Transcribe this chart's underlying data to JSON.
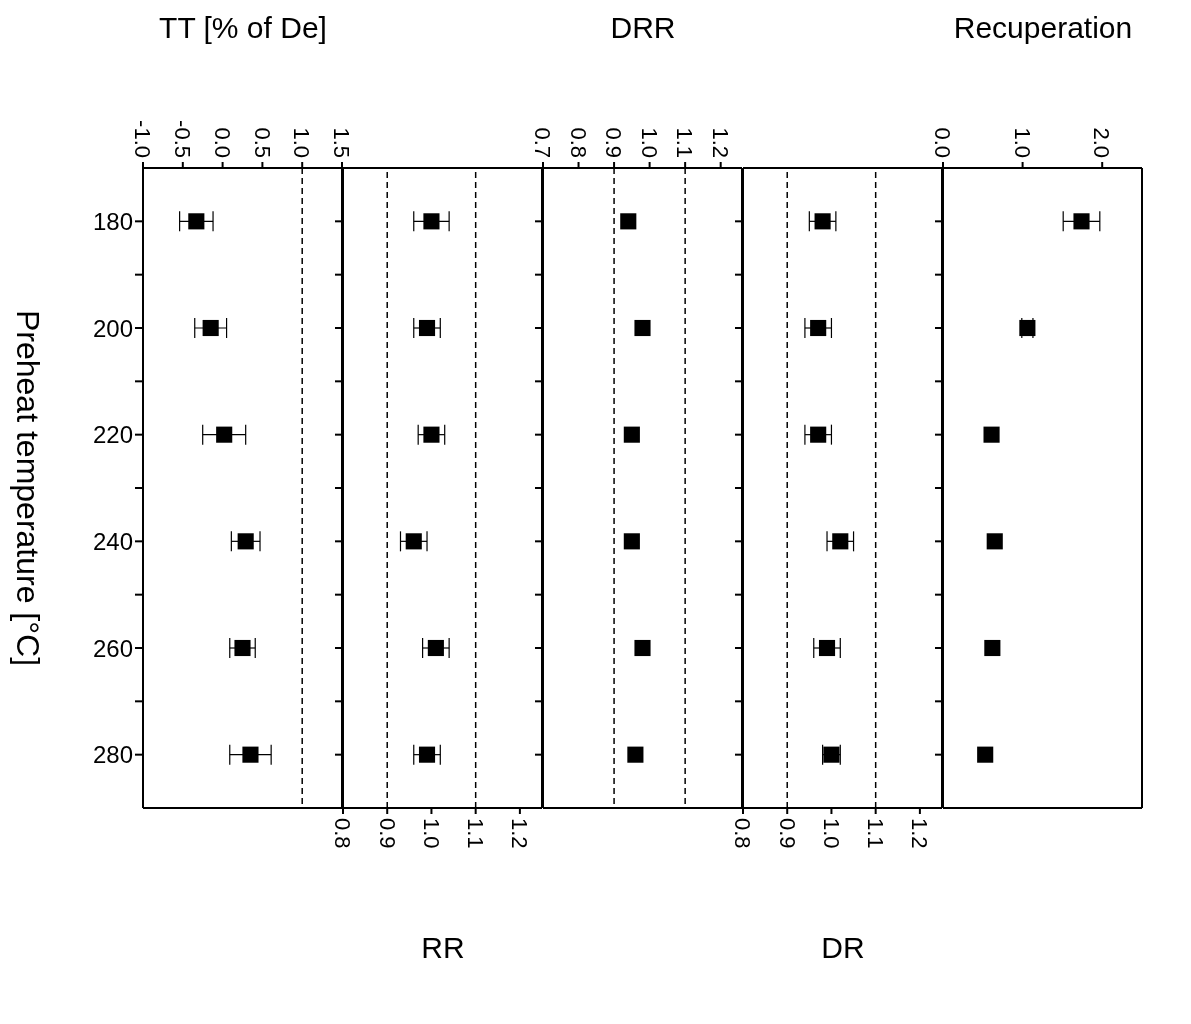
{
  "chart_data": [
    {
      "type": "scatter",
      "orientation": "horizontal",
      "xlabel": "TT [% of De]",
      "ylabel": "Preheat temperature [°C]",
      "x": [
        180,
        200,
        220,
        240,
        260,
        280
      ],
      "series": [
        {
          "color": "#000000",
          "values": [
            -0.33,
            -0.15,
            0.02,
            0.29,
            0.25,
            0.35
          ],
          "errors": [
            0.21,
            0.2,
            0.27,
            0.18,
            0.16,
            0.26
          ]
        }
      ],
      "xlim": [
        -1.0,
        1.5
      ],
      "xticks": [
        {
          "value": -1,
          "label": "-1.0"
        },
        {
          "value": -0.5,
          "label": "-0.5"
        },
        {
          "value": 0,
          "label": "0.0"
        },
        {
          "value": 0.5,
          "label": "0.5"
        },
        {
          "value": 1,
          "label": "1.0"
        },
        {
          "value": 1.5,
          "label": "1.5"
        }
      ],
      "ylim": [
        290,
        170
      ],
      "yticks": [
        180,
        {
          "value": 190,
          "label": null
        },
        200,
        {
          "value": 210,
          "label": null
        },
        220,
        {
          "value": 230,
          "label": null
        },
        240,
        {
          "value": 250,
          "label": null
        },
        260,
        {
          "value": 270,
          "label": null
        },
        280
      ],
      "ref_lines": [
        {
          "axis": "x",
          "value": 1.0,
          "line_style": "dashed"
        }
      ],
      "marker": "square",
      "grid": false,
      "legend": false
    },
    {
      "type": "scatter",
      "orientation": "horizontal",
      "xlabel": "RR",
      "x": [
        180,
        200,
        220,
        240,
        260,
        280
      ],
      "series": [
        {
          "color": "#000000",
          "values": [
            1.0,
            0.99,
            1.0,
            0.96,
            1.01,
            0.99
          ],
          "errors": [
            0.04,
            0.03,
            0.03,
            0.03,
            0.03,
            0.03
          ]
        }
      ],
      "xlim": [
        0.8,
        1.25
      ],
      "xticks": [
        {
          "value": 0.8,
          "label": "0.8"
        },
        {
          "value": 0.9,
          "label": "0.9"
        },
        {
          "value": 1,
          "label": "1.0"
        },
        {
          "value": 1.1,
          "label": "1.1"
        },
        {
          "value": 1.2,
          "label": "1.2"
        }
      ],
      "ylim": [
        290,
        170
      ],
      "yticks": [
        180,
        {
          "value": 190,
          "label": null
        },
        200,
        {
          "value": 210,
          "label": null
        },
        220,
        {
          "value": 230,
          "label": null
        },
        240,
        {
          "value": 250,
          "label": null
        },
        260,
        {
          "value": 270,
          "label": null
        },
        280
      ],
      "tick_labels": "x",
      "ref_lines": [
        {
          "axis": "x",
          "value": 0.9,
          "line_style": "dashed"
        },
        {
          "axis": "x",
          "value": 1.1,
          "line_style": "dashed"
        }
      ],
      "marker": "square",
      "grid": false,
      "legend": false
    },
    {
      "type": "scatter",
      "orientation": "horizontal",
      "xlabel": "DRR",
      "x": [
        180,
        200,
        220,
        240,
        260,
        280
      ],
      "series": [
        {
          "color": "#000000",
          "values": [
            0.94,
            0.98,
            0.95,
            0.95,
            0.98,
            0.96
          ]
        }
      ],
      "xlim": [
        0.7,
        1.26
      ],
      "xticks": [
        {
          "value": 0.7,
          "label": "0.7"
        },
        {
          "value": 0.8,
          "label": "0.8"
        },
        {
          "value": 0.9,
          "label": "0.9"
        },
        {
          "value": 1,
          "label": "1.0"
        },
        {
          "value": 1.1,
          "label": "1.1"
        },
        {
          "value": 1.2,
          "label": "1.2"
        }
      ],
      "ylim": [
        290,
        170
      ],
      "yticks": [
        180,
        {
          "value": 190,
          "label": null
        },
        200,
        {
          "value": 210,
          "label": null
        },
        220,
        {
          "value": 230,
          "label": null
        },
        240,
        {
          "value": 250,
          "label": null
        },
        260,
        {
          "value": 270,
          "label": null
        },
        280
      ],
      "tick_labels": "x",
      "ref_lines": [
        {
          "axis": "x",
          "value": 0.9,
          "line_style": "dashed"
        },
        {
          "axis": "x",
          "value": 1.1,
          "line_style": "dashed"
        }
      ],
      "marker": "square",
      "grid": false,
      "legend": false
    },
    {
      "type": "scatter",
      "orientation": "horizontal",
      "xlabel": "DR",
      "x": [
        180,
        200,
        220,
        240,
        260,
        280
      ],
      "series": [
        {
          "color": "#000000",
          "values": [
            0.98,
            0.97,
            0.97,
            1.02,
            0.99,
            1.0
          ],
          "errors": [
            0.03,
            0.03,
            0.03,
            0.03,
            0.03,
            0.02
          ]
        }
      ],
      "xlim": [
        0.8,
        1.25
      ],
      "xticks": [
        {
          "value": 0.8,
          "label": "0.8"
        },
        {
          "value": 0.9,
          "label": "0.9"
        },
        {
          "value": 1,
          "label": "1.0"
        },
        {
          "value": 1.1,
          "label": "1.1"
        },
        {
          "value": 1.2,
          "label": "1.2"
        }
      ],
      "ylim": [
        290,
        170
      ],
      "yticks": [
        180,
        {
          "value": 190,
          "label": null
        },
        200,
        {
          "value": 210,
          "label": null
        },
        220,
        {
          "value": 230,
          "label": null
        },
        240,
        {
          "value": 250,
          "label": null
        },
        260,
        {
          "value": 270,
          "label": null
        },
        280
      ],
      "tick_labels": "x",
      "ref_lines": [
        {
          "axis": "x",
          "value": 0.9,
          "line_style": "dashed"
        },
        {
          "axis": "x",
          "value": 1.1,
          "line_style": "dashed"
        }
      ],
      "marker": "square",
      "grid": false,
      "legend": false
    },
    {
      "type": "scatter",
      "orientation": "horizontal",
      "xlabel": "Recuperation",
      "x": [
        180,
        200,
        220,
        240,
        260,
        280
      ],
      "series": [
        {
          "color": "#000000",
          "values": [
            1.74,
            1.06,
            0.61,
            0.65,
            0.62,
            0.53
          ],
          "errors": [
            0.23,
            0.07,
            null,
            null,
            null,
            null
          ]
        }
      ],
      "xlim": [
        0.0,
        2.5
      ],
      "xticks": [
        {
          "value": 0,
          "label": "0.0"
        },
        {
          "value": 1,
          "label": "1.0"
        },
        {
          "value": 2,
          "label": "2.0"
        }
      ],
      "ylim": [
        290,
        170
      ],
      "yticks": [
        180,
        {
          "value": 190,
          "label": null
        },
        200,
        {
          "value": 210,
          "label": null
        },
        220,
        {
          "value": 230,
          "label": null
        },
        240,
        {
          "value": 250,
          "label": null
        },
        260,
        {
          "value": 270,
          "label": null
        },
        280
      ],
      "tick_labels": "x",
      "marker": "square",
      "grid": false,
      "legend": false
    }
  ]
}
